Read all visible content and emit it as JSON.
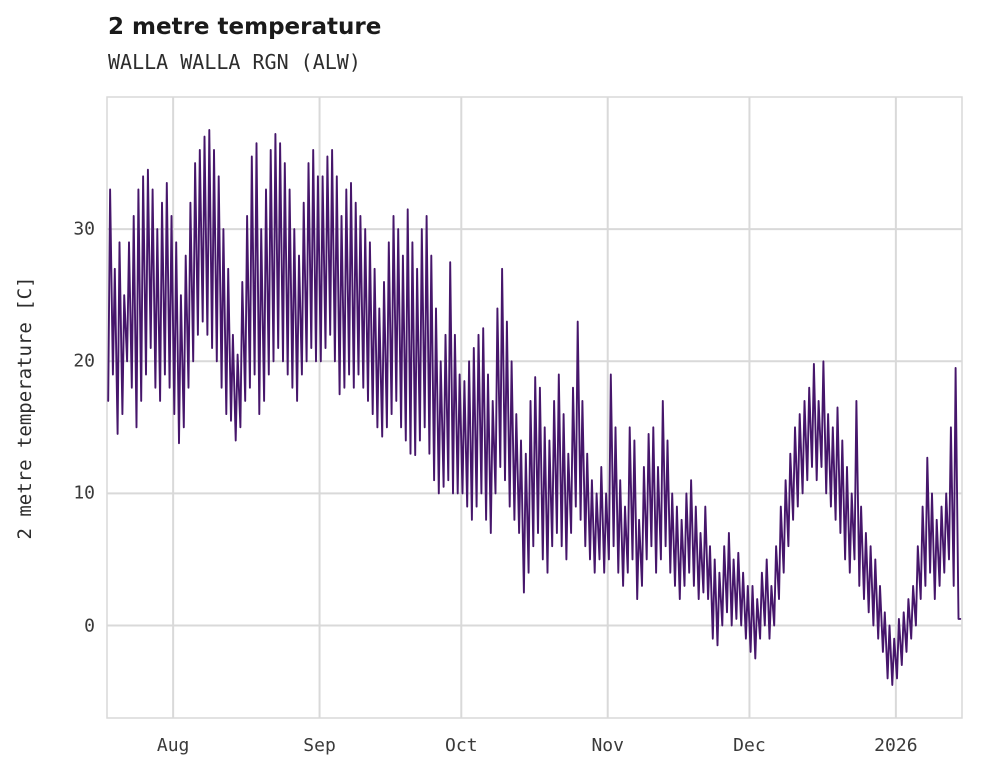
{
  "chart_data": {
    "type": "line",
    "title": "2 metre temperature",
    "subtitle": "WALLA WALLA RGN (ALW)",
    "ylabel": "2 metre temperature [C]",
    "xlabel": "",
    "grid": true,
    "legend": "none",
    "line_color": "#46166b",
    "grid_color": "#d9d9d9",
    "ylim": [
      -7,
      40
    ],
    "x_domain": [
      0,
      181
    ],
    "y_ticks": [
      {
        "label": "0",
        "value": 0
      },
      {
        "label": "10",
        "value": 10
      },
      {
        "label": "20",
        "value": 20
      },
      {
        "label": "30",
        "value": 30
      }
    ],
    "x_ticks": [
      {
        "label": "Aug",
        "day": 14
      },
      {
        "label": "Sep",
        "day": 45
      },
      {
        "label": "Oct",
        "day": 75
      },
      {
        "label": "Nov",
        "day": 106
      },
      {
        "label": "Dec",
        "day": 136
      },
      {
        "label": "2026",
        "day": 167
      }
    ],
    "daily_min_max": [
      [
        17,
        33
      ],
      [
        19,
        27
      ],
      [
        14.5,
        29
      ],
      [
        16,
        25
      ],
      [
        20,
        29
      ],
      [
        18,
        31
      ],
      [
        15,
        33
      ],
      [
        17,
        34
      ],
      [
        19,
        34.5
      ],
      [
        21,
        33
      ],
      [
        18,
        30
      ],
      [
        17,
        32
      ],
      [
        19,
        33.5
      ],
      [
        18,
        31
      ],
      [
        16,
        29
      ],
      [
        13.8,
        25
      ],
      [
        15,
        28
      ],
      [
        18,
        32
      ],
      [
        20,
        35
      ],
      [
        22,
        36
      ],
      [
        23,
        37
      ],
      [
        22,
        37.5
      ],
      [
        21,
        36
      ],
      [
        20,
        34
      ],
      [
        18,
        30
      ],
      [
        16,
        27
      ],
      [
        15.5,
        22
      ],
      [
        14,
        20.5
      ],
      [
        15,
        26
      ],
      [
        17,
        31
      ],
      [
        18,
        35.5
      ],
      [
        19,
        36.5
      ],
      [
        16,
        30
      ],
      [
        17,
        33
      ],
      [
        19,
        36
      ],
      [
        20,
        37.2
      ],
      [
        21,
        36.5
      ],
      [
        20,
        35
      ],
      [
        19,
        33
      ],
      [
        18,
        30
      ],
      [
        17,
        28
      ],
      [
        19,
        32
      ],
      [
        20,
        35
      ],
      [
        21,
        36
      ],
      [
        20,
        34
      ],
      [
        20,
        34
      ],
      [
        21,
        35.5
      ],
      [
        22,
        36
      ],
      [
        20,
        34
      ],
      [
        17.5,
        31
      ],
      [
        18,
        33
      ],
      [
        19,
        33.5
      ],
      [
        18,
        32
      ],
      [
        19,
        31
      ],
      [
        18,
        30
      ],
      [
        17,
        29
      ],
      [
        16,
        27
      ],
      [
        15,
        24
      ],
      [
        14.3,
        26
      ],
      [
        15,
        29
      ],
      [
        16,
        31
      ],
      [
        17,
        30
      ],
      [
        15,
        28
      ],
      [
        14,
        31.5
      ],
      [
        13,
        29
      ],
      [
        12.9,
        27
      ],
      [
        14,
        30
      ],
      [
        15,
        31
      ],
      [
        13,
        28
      ],
      [
        11,
        24
      ],
      [
        10,
        20
      ],
      [
        10.5,
        22
      ],
      [
        11,
        27.5
      ],
      [
        10,
        22
      ],
      [
        10,
        19
      ],
      [
        10,
        18.5
      ],
      [
        9,
        20
      ],
      [
        8,
        21
      ],
      [
        9,
        22
      ],
      [
        10,
        22.5
      ],
      [
        8,
        19
      ],
      [
        7,
        17
      ],
      [
        10,
        24
      ],
      [
        12,
        27
      ],
      [
        11,
        23
      ],
      [
        9,
        20
      ],
      [
        8,
        16
      ],
      [
        7,
        14
      ],
      [
        2.5,
        13
      ],
      [
        4,
        17
      ],
      [
        6,
        18.8
      ],
      [
        7,
        18
      ],
      [
        5,
        15
      ],
      [
        4,
        14
      ],
      [
        6,
        17
      ],
      [
        7,
        19
      ],
      [
        6,
        16
      ],
      [
        5,
        13
      ],
      [
        7,
        18
      ],
      [
        9,
        23
      ],
      [
        8,
        17
      ],
      [
        6,
        13
      ],
      [
        5,
        11
      ],
      [
        4,
        10
      ],
      [
        5,
        12
      ],
      [
        4,
        10
      ],
      [
        5,
        19
      ],
      [
        6,
        15
      ],
      [
        4,
        11
      ],
      [
        3,
        9
      ],
      [
        4,
        15
      ],
      [
        5,
        14
      ],
      [
        2,
        8
      ],
      [
        3,
        12
      ],
      [
        5,
        14.5
      ],
      [
        6,
        15
      ],
      [
        4,
        12
      ],
      [
        5,
        17
      ],
      [
        6,
        14
      ],
      [
        4,
        10
      ],
      [
        3,
        9
      ],
      [
        2,
        8
      ],
      [
        3,
        10
      ],
      [
        4,
        11
      ],
      [
        3,
        9
      ],
      [
        2,
        7
      ],
      [
        2.5,
        9
      ],
      [
        2,
        6
      ],
      [
        -1,
        5
      ],
      [
        -1.5,
        4
      ],
      [
        0,
        6
      ],
      [
        1,
        7
      ],
      [
        0,
        5
      ],
      [
        0.5,
        5.5
      ],
      [
        0,
        4
      ],
      [
        -1,
        3
      ],
      [
        -2,
        3
      ],
      [
        -2.5,
        2
      ],
      [
        -1,
        4
      ],
      [
        0,
        5
      ],
      [
        -1,
        3
      ],
      [
        0,
        6
      ],
      [
        2,
        9
      ],
      [
        4,
        11
      ],
      [
        6,
        13
      ],
      [
        8,
        15
      ],
      [
        9,
        16
      ],
      [
        10,
        17
      ],
      [
        11,
        18
      ],
      [
        12,
        19.8
      ],
      [
        11,
        17
      ],
      [
        12,
        20
      ],
      [
        10,
        16
      ],
      [
        9,
        15
      ],
      [
        8,
        16.5
      ],
      [
        7,
        14
      ],
      [
        5,
        12
      ],
      [
        4,
        10
      ],
      [
        5,
        17
      ],
      [
        3,
        9
      ],
      [
        2,
        7
      ],
      [
        1,
        6
      ],
      [
        0,
        5
      ],
      [
        -1,
        3
      ],
      [
        -2,
        1
      ],
      [
        -4,
        0
      ],
      [
        -4.5,
        -1
      ],
      [
        -4,
        0.5
      ],
      [
        -3,
        1
      ],
      [
        -2,
        2
      ],
      [
        -1,
        3
      ],
      [
        0,
        6
      ],
      [
        2,
        9
      ],
      [
        3,
        12.7
      ],
      [
        4,
        10
      ],
      [
        2,
        8
      ],
      [
        3,
        9
      ],
      [
        4,
        10
      ],
      [
        5,
        15
      ],
      [
        3,
        19.5
      ],
      [
        0.5,
        0.5
      ]
    ]
  }
}
